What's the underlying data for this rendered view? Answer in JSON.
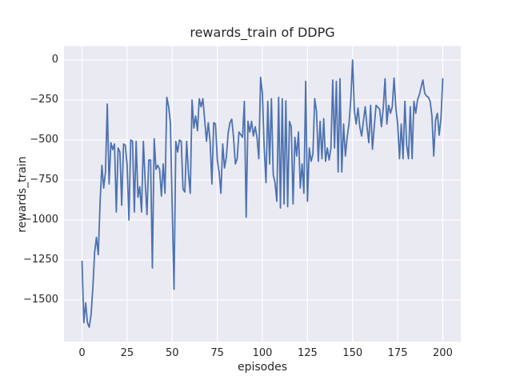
{
  "figure": {
    "title": "rewards_train of DDPG",
    "xlabel": "episodes",
    "ylabel": "rewards_train"
  },
  "chart_data": {
    "type": "line",
    "title": "rewards_train of DDPG",
    "xlabel": "episodes",
    "ylabel": "rewards_train",
    "x_description": "episode index: x[i] = i, for i = 0..200",
    "xlim": [
      -10,
      210
    ],
    "ylim": [
      -1761,
      87
    ],
    "xticks": [
      0,
      25,
      50,
      75,
      100,
      125,
      150,
      175,
      200
    ],
    "yticks": [
      0,
      -250,
      -500,
      -750,
      -1000,
      -1250,
      -1500
    ],
    "xtick_labels": [
      "0",
      "25",
      "50",
      "75",
      "100",
      "125",
      "150",
      "175",
      "200"
    ],
    "ytick_labels": [
      "0",
      "−250",
      "−500",
      "−750",
      "−1000",
      "−1250",
      "−1500"
    ],
    "grid": true,
    "legend": "none",
    "style": {
      "figure_bg": "#ffffff",
      "axes_bg": "#eaeaf2",
      "grid_color": "#ffffff",
      "line_color": "#4c72b0",
      "text_color": "#262626"
    },
    "series": [
      {
        "name": "rewards_train",
        "color": "#4c72b0",
        "values": [
          -1258,
          -1642,
          -1517,
          -1642,
          -1670,
          -1592,
          -1425,
          -1200,
          -1108,
          -1217,
          -892,
          -658,
          -800,
          -700,
          -275,
          -775,
          -517,
          -560,
          -525,
          -950,
          -550,
          -575,
          -908,
          -525,
          -533,
          -658,
          -1000,
          -500,
          -508,
          -950,
          -508,
          -858,
          -792,
          -950,
          -508,
          -758,
          -967,
          -625,
          -625,
          -1300,
          -492,
          -683,
          -658,
          -683,
          -850,
          -650,
          -833,
          -233,
          -290,
          -392,
          -925,
          -1433,
          -508,
          -575,
          -500,
          -508,
          -808,
          -825,
          -508,
          -708,
          -833,
          -250,
          -425,
          -350,
          -442,
          -242,
          -292,
          -242,
          -375,
          -508,
          -392,
          -508,
          -775,
          -392,
          -400,
          -625,
          -700,
          -833,
          -525,
          -675,
          -608,
          -458,
          -392,
          -370,
          -483,
          -650,
          -617,
          -450,
          -467,
          -483,
          -258,
          -983,
          -383,
          -450,
          -383,
          -475,
          -417,
          -483,
          -617,
          -108,
          -210,
          -550,
          -767,
          -258,
          -650,
          -242,
          -717,
          -767,
          -883,
          -233,
          -925,
          -242,
          -900,
          -255,
          -917,
          -383,
          -417,
          -900,
          -483,
          -600,
          -450,
          -800,
          -650,
          -833,
          -133,
          -883,
          -550,
          -633,
          -590,
          -242,
          -320,
          -633,
          -383,
          -617,
          -367,
          -633,
          -550,
          -625,
          -550,
          -125,
          -550,
          -133,
          -700,
          -117,
          -700,
          -400,
          -600,
          -483,
          -400,
          -250,
          0,
          -317,
          -400,
          -300,
          -417,
          -475,
          -383,
          -292,
          -417,
          -517,
          -283,
          -558,
          -420,
          -283,
          -295,
          -308,
          -417,
          -300,
          -117,
          -400,
          -283,
          -333,
          -292,
          -113,
          -300,
          -400,
          -617,
          -400,
          -617,
          -258,
          -533,
          -617,
          -292,
          -617,
          -258,
          -333,
          -250,
          -217,
          -170,
          -125,
          -208,
          -225,
          -233,
          -258,
          -350,
          -600,
          -375,
          -333,
          -470,
          -367,
          -117
        ]
      }
    ]
  }
}
